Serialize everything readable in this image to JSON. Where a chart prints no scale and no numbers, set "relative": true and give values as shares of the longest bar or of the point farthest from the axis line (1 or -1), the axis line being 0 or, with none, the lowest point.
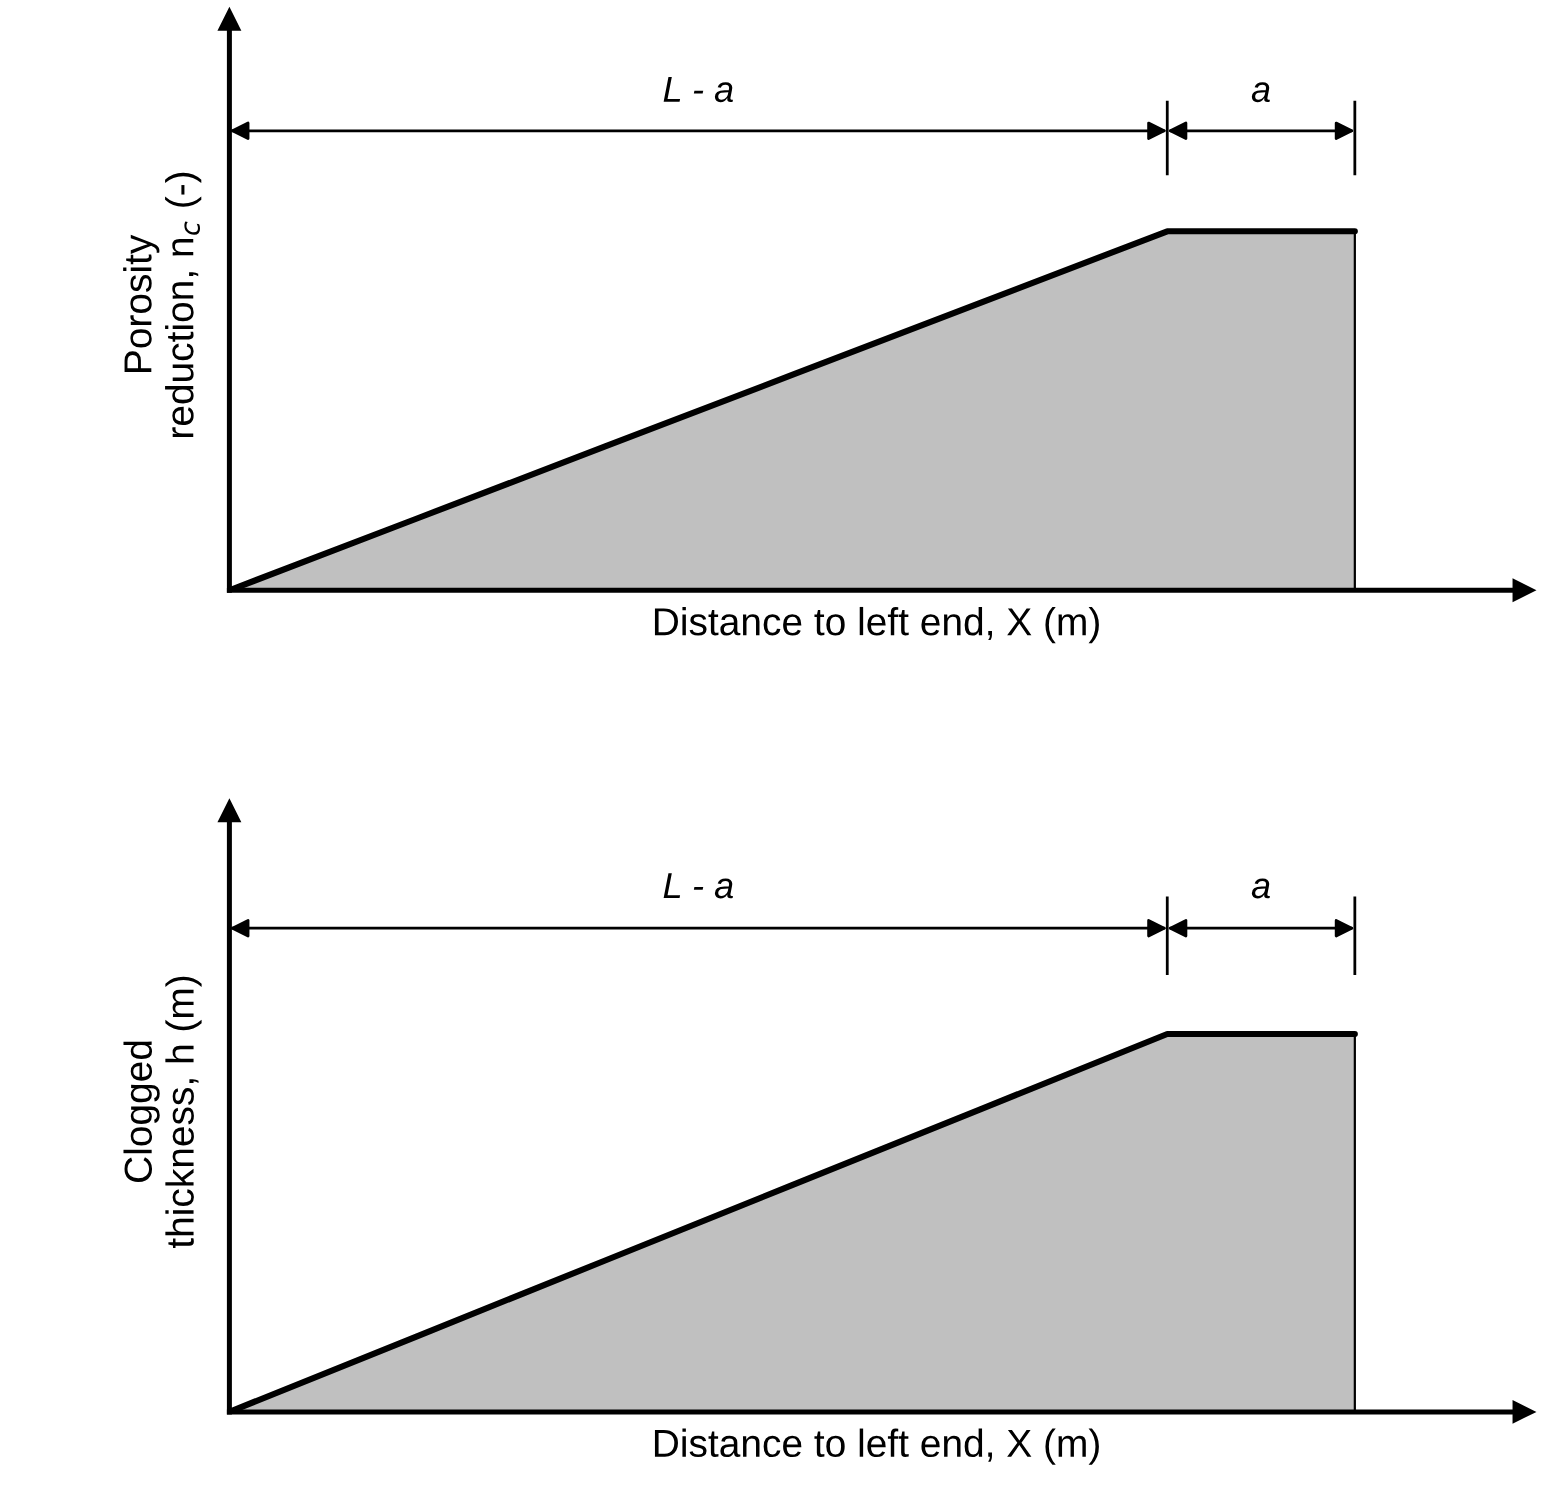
{
  "chart_data": [
    {
      "type": "area",
      "relative": true,
      "ylabel": "Porosity\nreduction, n$_{c}$ (-)",
      "xlabel": "Distance to left end, X (m)",
      "categories": [
        null,
        null,
        null,
        null,
        null,
        null,
        null
      ],
      "values": [
        0,
        0.2,
        0.4,
        0.6,
        0.8,
        1,
        1
      ],
      "color": "#c0c0c0",
      "annotations": [
        "L - a",
        "a"
      ]
    },
    {
      "type": "area",
      "relative": true,
      "ylabel": "Clogged\nthickness, h (m)",
      "xlabel": "Distance to left end, X (m)",
      "categories": [
        null,
        null,
        null,
        null,
        null,
        null,
        null
      ],
      "values": [
        0,
        0.2,
        0.4,
        0.6,
        0.8,
        1,
        1
      ],
      "color": "#c0c0c0",
      "annotations": [
        "L - a",
        "a"
      ]
    }
  ]
}
